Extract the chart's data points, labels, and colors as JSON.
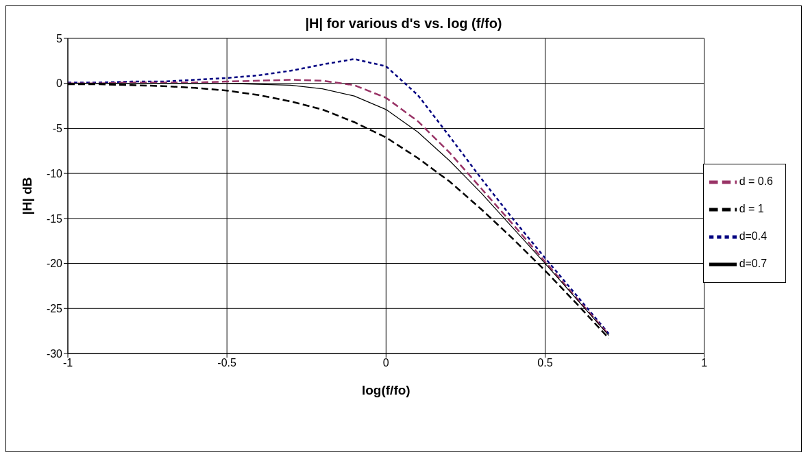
{
  "chart_data": {
    "type": "line",
    "title": "|H| for various d's vs. log (f/fo)",
    "xlabel": "log(f/fo)",
    "ylabel": "|H| dB",
    "x": [
      -1,
      -0.9,
      -0.8,
      -0.7,
      -0.6,
      -0.5,
      -0.4,
      -0.3,
      -0.2,
      -0.1,
      0,
      0.1,
      0.2,
      0.3,
      0.4,
      0.5,
      0.6,
      0.7
    ],
    "series": [
      {
        "name": "d=0.4",
        "color": "#000080",
        "line_style": "dotted",
        "values": [
          0.1,
          0.1,
          0.2,
          0.2,
          0.4,
          0.6,
          0.9,
          1.4,
          2.1,
          2.7,
          1.9,
          -1.3,
          -5.9,
          -10.6,
          -15.1,
          -19.4,
          -23.6,
          -27.8
        ]
      },
      {
        "name": "d = 0.6",
        "color": "#993366",
        "line_style": "dashed",
        "values": [
          0,
          0,
          0.1,
          0.1,
          0.1,
          0.2,
          0.3,
          0.4,
          0.3,
          -0.2,
          -1.6,
          -4.2,
          -7.7,
          -11.7,
          -15.7,
          -19.8,
          -23.9,
          -27.9
        ]
      },
      {
        "name": "d=0.7",
        "color": "#000000",
        "line_style": "solid",
        "values": [
          0,
          0,
          0,
          0,
          0,
          0,
          -0.1,
          -0.2,
          -0.6,
          -1.4,
          -2.9,
          -5.4,
          -8.6,
          -12.2,
          -16.1,
          -20,
          -24,
          -28
        ]
      },
      {
        "name": "d = 1",
        "color": "#000000",
        "line_style": "dashed",
        "values": [
          -0.1,
          -0.1,
          -0.2,
          -0.3,
          -0.5,
          -0.8,
          -1.3,
          -2,
          -2.9,
          -4.3,
          -6,
          -8.3,
          -10.9,
          -14,
          -17.3,
          -20.8,
          -24.5,
          -28.3
        ]
      }
    ],
    "xlim": [
      -1,
      1
    ],
    "xticks": [
      -1,
      -0.5,
      0,
      0.5,
      1
    ],
    "ylim": [
      -30,
      5
    ],
    "yticks": [
      -30,
      -25,
      -20,
      -15,
      -10,
      -5,
      0,
      5
    ],
    "grid": true,
    "legend": "right",
    "marker": "none"
  }
}
